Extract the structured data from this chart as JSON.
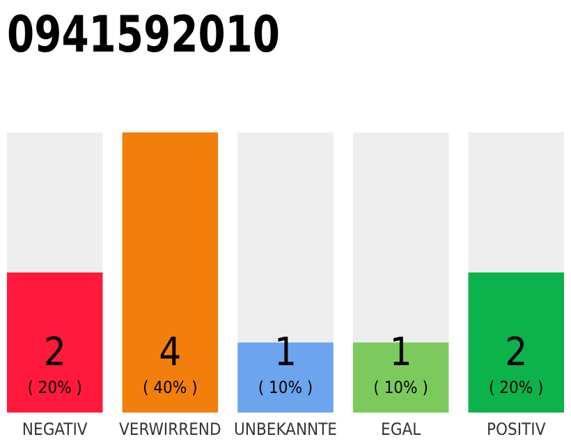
{
  "chart_data": {
    "type": "bar",
    "title": "0941592010",
    "categories": [
      "NEGATIV",
      "VERWIRREND",
      "UNBEKANNTE",
      "EGAL",
      "POSITIV"
    ],
    "values": [
      2,
      4,
      1,
      1,
      2
    ],
    "colors": [
      "#ff1a3d",
      "#f27f0c",
      "#6da4ee",
      "#7dca5c",
      "#0cb24a"
    ],
    "value_labels": [
      "2\n( 20% )",
      "4\n( 40% )",
      "1\n( 10% )",
      "1\n( 10% )",
      "2\n( 20% )"
    ]
  }
}
